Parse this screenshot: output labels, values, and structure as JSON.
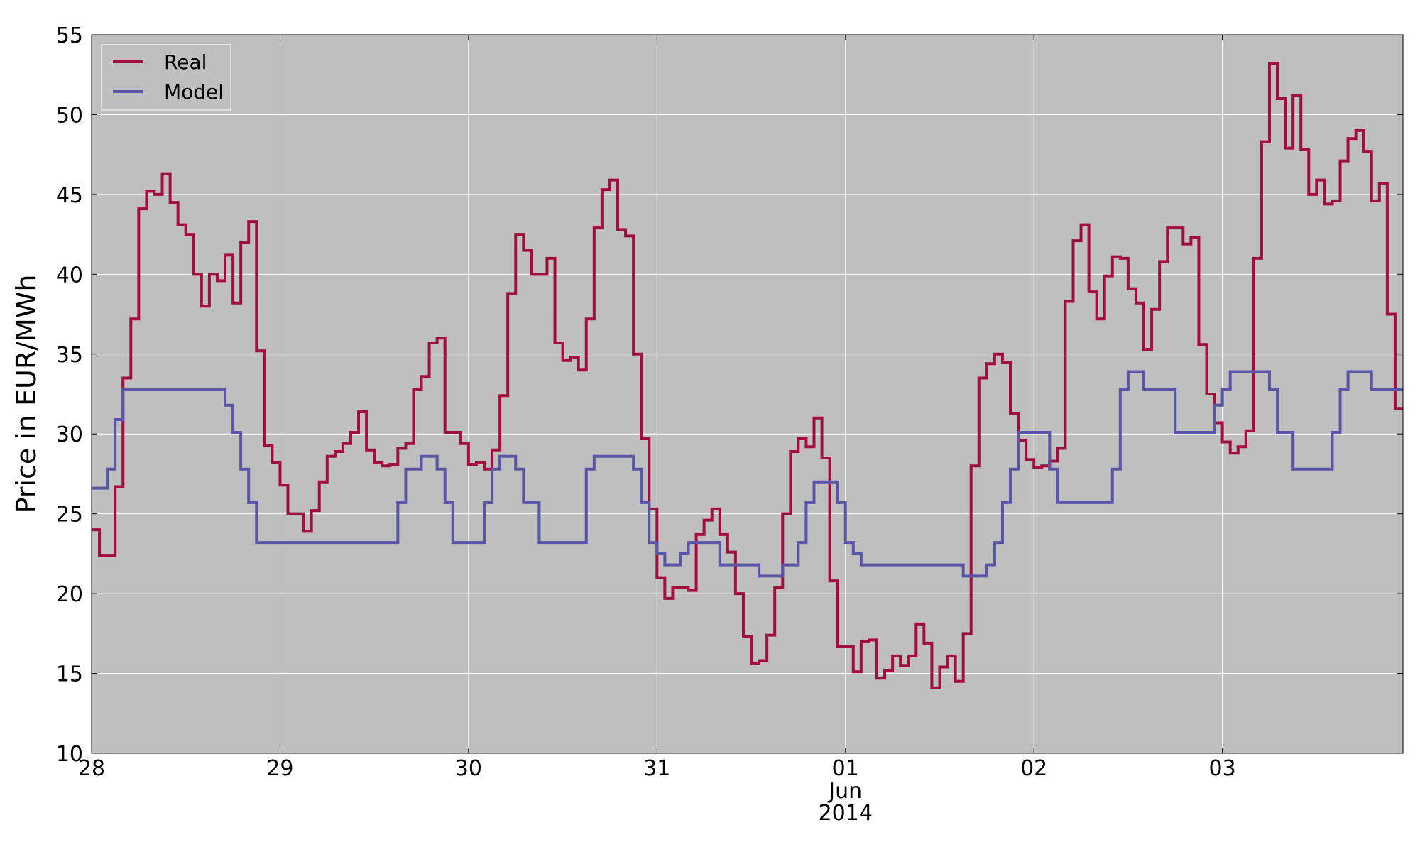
{
  "chart_data": {
    "type": "line",
    "step": true,
    "title": "",
    "xlabel": "",
    "ylabel": "Price in EUR/MWh",
    "ylim": [
      10,
      55
    ],
    "xlim": [
      "2014-05-28 00:00",
      "2014-06-03 23:00"
    ],
    "background_color": "#bfbfbf",
    "grid": true,
    "legend_position": "top-left",
    "x_ticks": [
      {
        "at": "2014-05-28",
        "label": "28"
      },
      {
        "at": "2014-05-29",
        "label": "29"
      },
      {
        "at": "2014-05-30",
        "label": "30"
      },
      {
        "at": "2014-05-31",
        "label": "31"
      },
      {
        "at": "2014-06-01",
        "label": "01",
        "sub1": "Jun",
        "sub2": "2014"
      },
      {
        "at": "2014-06-02",
        "label": "02"
      },
      {
        "at": "2014-06-03",
        "label": "03"
      }
    ],
    "y_ticks": [
      10,
      15,
      20,
      25,
      30,
      35,
      40,
      45,
      50,
      55
    ],
    "x": [
      "2014-05-28 00:00",
      "2014-05-28 01:00",
      "2014-05-28 02:00",
      "2014-05-28 03:00",
      "2014-05-28 04:00",
      "2014-05-28 05:00",
      "2014-05-28 06:00",
      "2014-05-28 07:00",
      "2014-05-28 08:00",
      "2014-05-28 09:00",
      "2014-05-28 10:00",
      "2014-05-28 11:00",
      "2014-05-28 12:00",
      "2014-05-28 13:00",
      "2014-05-28 14:00",
      "2014-05-28 15:00",
      "2014-05-28 16:00",
      "2014-05-28 17:00",
      "2014-05-28 18:00",
      "2014-05-28 19:00",
      "2014-05-28 20:00",
      "2014-05-28 21:00",
      "2014-05-28 22:00",
      "2014-05-28 23:00",
      "2014-05-29 00:00",
      "2014-05-29 01:00",
      "2014-05-29 02:00",
      "2014-05-29 03:00",
      "2014-05-29 04:00",
      "2014-05-29 05:00",
      "2014-05-29 06:00",
      "2014-05-29 07:00",
      "2014-05-29 08:00",
      "2014-05-29 09:00",
      "2014-05-29 10:00",
      "2014-05-29 11:00",
      "2014-05-29 12:00",
      "2014-05-29 13:00",
      "2014-05-29 14:00",
      "2014-05-29 15:00",
      "2014-05-29 16:00",
      "2014-05-29 17:00",
      "2014-05-29 18:00",
      "2014-05-29 19:00",
      "2014-05-29 20:00",
      "2014-05-29 21:00",
      "2014-05-29 22:00",
      "2014-05-29 23:00",
      "2014-05-30 00:00",
      "2014-05-30 01:00",
      "2014-05-30 02:00",
      "2014-05-30 03:00",
      "2014-05-30 04:00",
      "2014-05-30 05:00",
      "2014-05-30 06:00",
      "2014-05-30 07:00",
      "2014-05-30 08:00",
      "2014-05-30 09:00",
      "2014-05-30 10:00",
      "2014-05-30 11:00",
      "2014-05-30 12:00",
      "2014-05-30 13:00",
      "2014-05-30 14:00",
      "2014-05-30 15:00",
      "2014-05-30 16:00",
      "2014-05-30 17:00",
      "2014-05-30 18:00",
      "2014-05-30 19:00",
      "2014-05-30 20:00",
      "2014-05-30 21:00",
      "2014-05-30 22:00",
      "2014-05-30 23:00",
      "2014-05-31 00:00",
      "2014-05-31 01:00",
      "2014-05-31 02:00",
      "2014-05-31 03:00",
      "2014-05-31 04:00",
      "2014-05-31 05:00",
      "2014-05-31 06:00",
      "2014-05-31 07:00",
      "2014-05-31 08:00",
      "2014-05-31 09:00",
      "2014-05-31 10:00",
      "2014-05-31 11:00",
      "2014-05-31 12:00",
      "2014-05-31 13:00",
      "2014-05-31 14:00",
      "2014-05-31 15:00",
      "2014-05-31 16:00",
      "2014-05-31 17:00",
      "2014-05-31 18:00",
      "2014-05-31 19:00",
      "2014-05-31 20:00",
      "2014-05-31 21:00",
      "2014-05-31 22:00",
      "2014-05-31 23:00",
      "2014-06-01 00:00",
      "2014-06-01 01:00",
      "2014-06-01 02:00",
      "2014-06-01 03:00",
      "2014-06-01 04:00",
      "2014-06-01 05:00",
      "2014-06-01 06:00",
      "2014-06-01 07:00",
      "2014-06-01 08:00",
      "2014-06-01 09:00",
      "2014-06-01 10:00",
      "2014-06-01 11:00",
      "2014-06-01 12:00",
      "2014-06-01 13:00",
      "2014-06-01 14:00",
      "2014-06-01 15:00",
      "2014-06-01 16:00",
      "2014-06-01 17:00",
      "2014-06-01 18:00",
      "2014-06-01 19:00",
      "2014-06-01 20:00",
      "2014-06-01 21:00",
      "2014-06-01 22:00",
      "2014-06-01 23:00",
      "2014-06-02 00:00",
      "2014-06-02 01:00",
      "2014-06-02 02:00",
      "2014-06-02 03:00",
      "2014-06-02 04:00",
      "2014-06-02 05:00",
      "2014-06-02 06:00",
      "2014-06-02 07:00",
      "2014-06-02 08:00",
      "2014-06-02 09:00",
      "2014-06-02 10:00",
      "2014-06-02 11:00",
      "2014-06-02 12:00",
      "2014-06-02 13:00",
      "2014-06-02 14:00",
      "2014-06-02 15:00",
      "2014-06-02 16:00",
      "2014-06-02 17:00",
      "2014-06-02 18:00",
      "2014-06-02 19:00",
      "2014-06-02 20:00",
      "2014-06-02 21:00",
      "2014-06-02 22:00",
      "2014-06-02 23:00",
      "2014-06-03 00:00",
      "2014-06-03 01:00",
      "2014-06-03 02:00",
      "2014-06-03 03:00",
      "2014-06-03 04:00",
      "2014-06-03 05:00",
      "2014-06-03 06:00",
      "2014-06-03 07:00",
      "2014-06-03 08:00",
      "2014-06-03 09:00",
      "2014-06-03 10:00",
      "2014-06-03 11:00",
      "2014-06-03 12:00",
      "2014-06-03 13:00",
      "2014-06-03 14:00",
      "2014-06-03 15:00",
      "2014-06-03 16:00",
      "2014-06-03 17:00",
      "2014-06-03 18:00",
      "2014-06-03 19:00",
      "2014-06-03 20:00",
      "2014-06-03 21:00",
      "2014-06-03 22:00",
      "2014-06-03 23:00"
    ],
    "series": [
      {
        "name": "Real",
        "color": "#a20f3f",
        "values": [
          24.0,
          22.4,
          22.4,
          26.7,
          33.5,
          37.2,
          44.1,
          45.2,
          45.0,
          46.3,
          44.5,
          43.1,
          42.5,
          40.0,
          38.0,
          40.0,
          39.6,
          41.2,
          38.2,
          42.0,
          43.3,
          35.2,
          29.3,
          28.2,
          26.8,
          25.0,
          25.0,
          23.9,
          25.2,
          27.0,
          28.6,
          28.9,
          29.4,
          30.1,
          31.4,
          29.0,
          28.2,
          28.0,
          28.1,
          29.1,
          29.4,
          32.8,
          33.6,
          35.7,
          36.0,
          30.1,
          30.1,
          29.4,
          28.1,
          28.2,
          27.8,
          29.0,
          32.4,
          38.8,
          42.5,
          41.5,
          40.0,
          40.0,
          41.0,
          35.7,
          34.6,
          34.8,
          34.0,
          37.2,
          42.9,
          45.3,
          45.9,
          42.8,
          42.4,
          35.0,
          29.7,
          25.3,
          21.0,
          19.7,
          20.4,
          20.4,
          20.2,
          23.7,
          24.6,
          25.3,
          23.7,
          22.6,
          20.0,
          17.3,
          15.6,
          15.8,
          17.4,
          20.4,
          25.0,
          28.9,
          29.7,
          29.2,
          31.0,
          28.5,
          20.8,
          16.7,
          16.7,
          15.1,
          17.0,
          17.1,
          14.7,
          15.2,
          16.1,
          15.5,
          16.1,
          18.1,
          16.9,
          14.1,
          15.4,
          16.1,
          14.5,
          17.5,
          28.0,
          33.5,
          34.4,
          35.0,
          34.5,
          31.3,
          29.6,
          28.4,
          27.9,
          28.0,
          28.3,
          29.1,
          38.3,
          42.1,
          43.1,
          38.9,
          37.2,
          39.9,
          41.1,
          41.0,
          39.1,
          38.2,
          35.3,
          37.8,
          40.8,
          42.9,
          42.9,
          41.9,
          42.3,
          35.6,
          32.5,
          30.7,
          29.5,
          28.8,
          29.2,
          30.2,
          41.0,
          48.3,
          53.2,
          51.0,
          47.9,
          51.2,
          47.8,
          45.0,
          45.9,
          44.4,
          44.6,
          47.1,
          48.5,
          49.0,
          47.7,
          44.6,
          45.7,
          37.5,
          31.6,
          31.6
        ]
      },
      {
        "name": "Model",
        "color": "#5a55a6",
        "values": [
          26.6,
          26.6,
          27.8,
          30.9,
          32.8,
          32.8,
          32.8,
          32.8,
          32.8,
          32.8,
          32.8,
          32.8,
          32.8,
          32.8,
          32.8,
          32.8,
          32.8,
          31.8,
          30.1,
          27.8,
          25.7,
          23.2,
          23.2,
          23.2,
          23.2,
          23.2,
          23.2,
          23.2,
          23.2,
          23.2,
          23.2,
          23.2,
          23.2,
          23.2,
          23.2,
          23.2,
          23.2,
          23.2,
          23.2,
          25.7,
          27.8,
          27.8,
          28.6,
          28.6,
          27.8,
          25.7,
          23.2,
          23.2,
          23.2,
          23.2,
          25.7,
          27.8,
          28.6,
          28.6,
          27.8,
          25.7,
          25.7,
          23.2,
          23.2,
          23.2,
          23.2,
          23.2,
          23.2,
          27.8,
          28.6,
          28.6,
          28.6,
          28.6,
          28.6,
          27.8,
          25.7,
          23.2,
          22.5,
          21.8,
          21.8,
          22.5,
          23.2,
          23.2,
          23.2,
          23.2,
          21.8,
          21.8,
          21.8,
          21.8,
          21.8,
          21.1,
          21.1,
          21.1,
          21.8,
          21.8,
          23.2,
          25.7,
          27.0,
          27.0,
          27.0,
          25.7,
          23.2,
          22.5,
          21.8,
          21.8,
          21.8,
          21.8,
          21.8,
          21.8,
          21.8,
          21.8,
          21.8,
          21.8,
          21.8,
          21.8,
          21.8,
          21.1,
          21.1,
          21.1,
          21.8,
          23.2,
          25.7,
          27.8,
          30.1,
          30.1,
          30.1,
          30.1,
          27.8,
          25.7,
          25.7,
          25.7,
          25.7,
          25.7,
          25.7,
          25.7,
          27.8,
          32.8,
          33.9,
          33.9,
          32.8,
          32.8,
          32.8,
          32.8,
          30.1,
          30.1,
          30.1,
          30.1,
          30.1,
          31.8,
          32.8,
          33.9,
          33.9,
          33.9,
          33.9,
          33.9,
          32.8,
          30.1,
          30.1,
          27.8,
          27.8,
          27.8,
          27.8,
          27.8,
          30.1,
          32.8,
          33.9,
          33.9,
          33.9,
          32.8,
          32.8,
          32.8,
          32.8,
          32.8
        ]
      }
    ]
  }
}
